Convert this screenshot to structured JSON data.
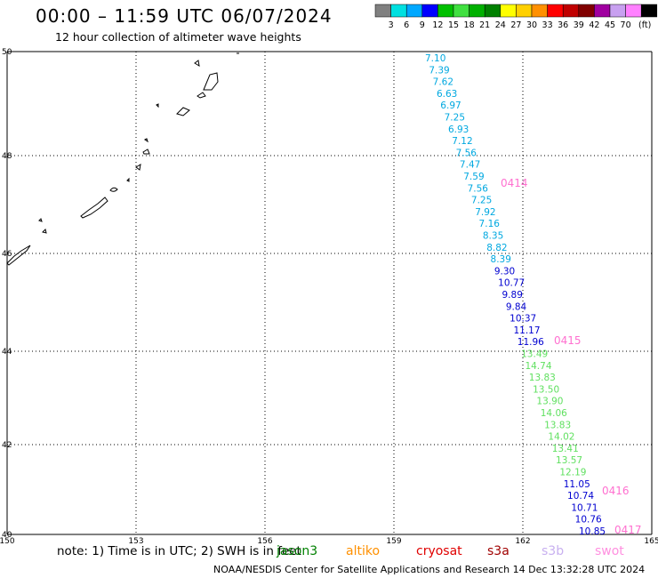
{
  "title": "00:00 – 11:59 UTC 06/07/2024",
  "subtitle": "12 hour collection of altimeter wave heights",
  "legend": {
    "unit": "(ft)",
    "items": [
      {
        "color": "#808080",
        "label": ""
      },
      {
        "color": "#00e0e0",
        "label": "3"
      },
      {
        "color": "#00a8ff",
        "label": "6"
      },
      {
        "color": "#0000ff",
        "label": "9"
      },
      {
        "color": "#00c000",
        "label": "12"
      },
      {
        "color": "#40e040",
        "label": "15"
      },
      {
        "color": "#00b000",
        "label": "18"
      },
      {
        "color": "#008000",
        "label": "21"
      },
      {
        "color": "#ffff00",
        "label": "24"
      },
      {
        "color": "#ffd000",
        "label": "27"
      },
      {
        "color": "#ff9000",
        "label": "30"
      },
      {
        "color": "#ff0000",
        "label": "33"
      },
      {
        "color": "#c00000",
        "label": "36"
      },
      {
        "color": "#800000",
        "label": "39"
      },
      {
        "color": "#a000a0",
        "label": "42"
      },
      {
        "color": "#c8a0f0",
        "label": "45"
      },
      {
        "color": "#ff80ff",
        "label": "70"
      },
      {
        "color": "#000000",
        "label": ""
      }
    ]
  },
  "axes": {
    "lon_labels": [
      "150",
      "153",
      "156",
      "159",
      "162",
      "165"
    ],
    "lat_labels": [
      "50",
      "48",
      "46",
      "44",
      "42",
      "40"
    ]
  },
  "points": [
    {
      "v": "7.10",
      "c": "#00a8e0"
    },
    {
      "v": "7.39",
      "c": "#00a8e0"
    },
    {
      "v": "7.62",
      "c": "#00a8e0"
    },
    {
      "v": "6.63",
      "c": "#00a8e0"
    },
    {
      "v": "6.97",
      "c": "#00a8e0"
    },
    {
      "v": "7.25",
      "c": "#00a8e0"
    },
    {
      "v": "6.93",
      "c": "#00a8e0"
    },
    {
      "v": "7.12",
      "c": "#00a8e0"
    },
    {
      "v": "7.56",
      "c": "#00a8e0"
    },
    {
      "v": "7.47",
      "c": "#00a8e0"
    },
    {
      "v": "7.59",
      "c": "#00a8e0"
    },
    {
      "v": "7.56",
      "c": "#00a8e0"
    },
    {
      "v": "7.25",
      "c": "#00a8e0"
    },
    {
      "v": "7.92",
      "c": "#00a8e0"
    },
    {
      "v": "7.16",
      "c": "#00a8e0"
    },
    {
      "v": "8.35",
      "c": "#00a8e0"
    },
    {
      "v": "8.82",
      "c": "#00a8e0"
    },
    {
      "v": "8.39",
      "c": "#00a8e0"
    },
    {
      "v": "9.30",
      "c": "#0000d0"
    },
    {
      "v": "10.77",
      "c": "#0000d0"
    },
    {
      "v": "9.89",
      "c": "#0000d0"
    },
    {
      "v": "9.84",
      "c": "#0000d0"
    },
    {
      "v": "10.37",
      "c": "#0000d0"
    },
    {
      "v": "11.17",
      "c": "#0000d0"
    },
    {
      "v": "11.96",
      "c": "#0000d0"
    },
    {
      "v": "13.49",
      "c": "#60e060"
    },
    {
      "v": "14.74",
      "c": "#60e060"
    },
    {
      "v": "13.83",
      "c": "#60e060"
    },
    {
      "v": "13.50",
      "c": "#60e060"
    },
    {
      "v": "13.90",
      "c": "#60e060"
    },
    {
      "v": "14.06",
      "c": "#60e060"
    },
    {
      "v": "13.83",
      "c": "#60e060"
    },
    {
      "v": "14.02",
      "c": "#60e060"
    },
    {
      "v": "13.41",
      "c": "#60e060"
    },
    {
      "v": "13.57",
      "c": "#60e060"
    },
    {
      "v": "12.19",
      "c": "#60e060"
    },
    {
      "v": "11.05",
      "c": "#0000d0"
    },
    {
      "v": "10.74",
      "c": "#0000d0"
    },
    {
      "v": "10.71",
      "c": "#0000d0"
    },
    {
      "v": "10.76",
      "c": "#0000d0"
    },
    {
      "v": "10.85",
      "c": "#0000d0"
    }
  ],
  "time_labels": [
    {
      "text": "0414",
      "color": "#ff70d0"
    },
    {
      "text": "0415",
      "color": "#ff70d0"
    },
    {
      "text": "0416",
      "color": "#ff70d0"
    },
    {
      "text": "0417",
      "color": "#ff70d0"
    }
  ],
  "note": "note: 1) Time is in UTC; 2) SWH is in feet",
  "satellites": [
    {
      "name": "jason3",
      "color": "#008000"
    },
    {
      "name": "altiko",
      "color": "#ff9000"
    },
    {
      "name": "cryosat",
      "color": "#e00000"
    },
    {
      "name": "s3a",
      "color": "#a00000"
    },
    {
      "name": "s3b",
      "color": "#c8b0f0"
    },
    {
      "name": "swot",
      "color": "#ff90e0"
    }
  ],
  "footer": "NOAA/NESDIS Center for Satellite Applications and Research    14 Dec 13:32:28 UTC 2024"
}
